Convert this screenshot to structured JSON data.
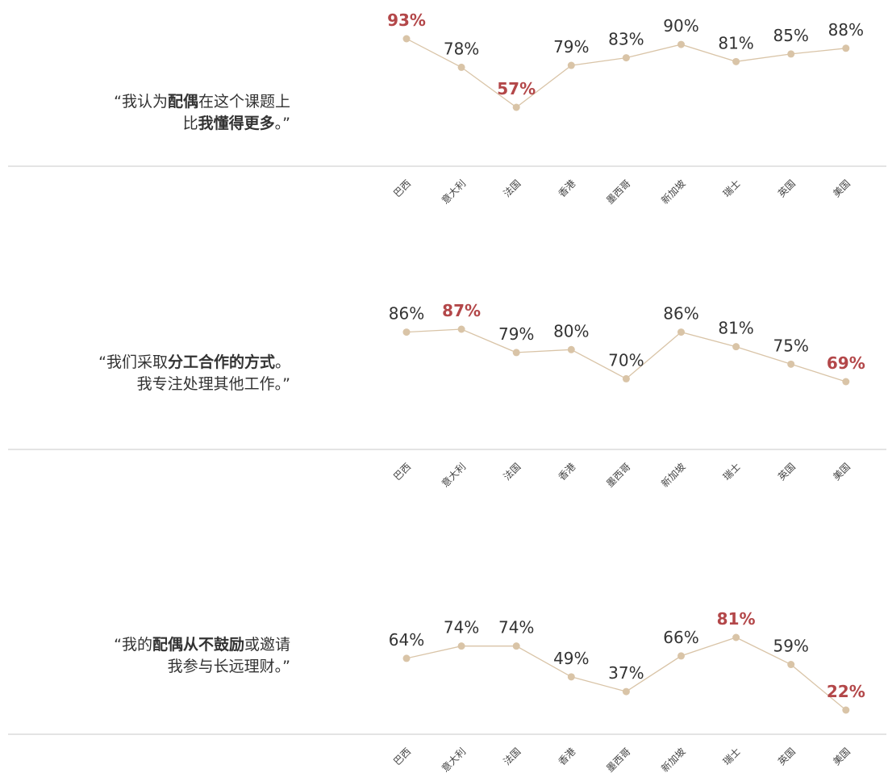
{
  "chart_data": [
    {
      "type": "line",
      "quote": [
        [
          {
            "text": "“我认为"
          },
          {
            "text": "配偶",
            "bold": true
          },
          {
            "text": "在这个课题上"
          }
        ],
        [
          {
            "text": "比"
          },
          {
            "text": "我懂得更多",
            "bold": true
          },
          {
            "text": "。”"
          }
        ]
      ],
      "categories": [
        "巴西",
        "意大利",
        "法国",
        "香港",
        "墨西哥",
        "新加坡",
        "瑞士",
        "英国",
        "美国"
      ],
      "values": [
        93,
        78,
        57,
        79,
        83,
        90,
        81,
        85,
        88
      ],
      "value_labels": [
        "93%",
        "78%",
        "57%",
        "79%",
        "83%",
        "90%",
        "81%",
        "85%",
        "88%"
      ],
      "color": "#d9c4a7",
      "highlight_color": "#b34749"
    },
    {
      "type": "line",
      "quote": [
        [
          {
            "text": "“我们采取"
          },
          {
            "text": "分工合作的方式",
            "bold": true
          },
          {
            "text": "。"
          }
        ],
        [
          {
            "text": "我专注处理其他工作。”"
          }
        ]
      ],
      "categories": [
        "巴西",
        "意大利",
        "法国",
        "香港",
        "墨西哥",
        "新加坡",
        "瑞士",
        "英国",
        "美国"
      ],
      "values": [
        86,
        87,
        79,
        80,
        70,
        86,
        81,
        75,
        69
      ],
      "value_labels": [
        "86%",
        "87%",
        "79%",
        "80%",
        "70%",
        "86%",
        "81%",
        "75%",
        "69%"
      ],
      "color": "#d9c4a7",
      "highlight_color": "#b34749"
    },
    {
      "type": "line",
      "quote": [
        [
          {
            "text": "“我的"
          },
          {
            "text": "配偶从不鼓励",
            "bold": true
          },
          {
            "text": "或邀请"
          }
        ],
        [
          {
            "text": "我参与长远理财。”"
          }
        ]
      ],
      "categories": [
        "巴西",
        "意大利",
        "法国",
        "香港",
        "墨西哥",
        "新加坡",
        "瑞士",
        "英国",
        "美国"
      ],
      "values": [
        64,
        74,
        74,
        49,
        37,
        66,
        81,
        59,
        22
      ],
      "value_labels": [
        "64%",
        "74%",
        "74%",
        "49%",
        "37%",
        "66%",
        "81%",
        "59%",
        "22%"
      ],
      "color": "#d9c4a7",
      "highlight_color": "#b34749"
    }
  ]
}
